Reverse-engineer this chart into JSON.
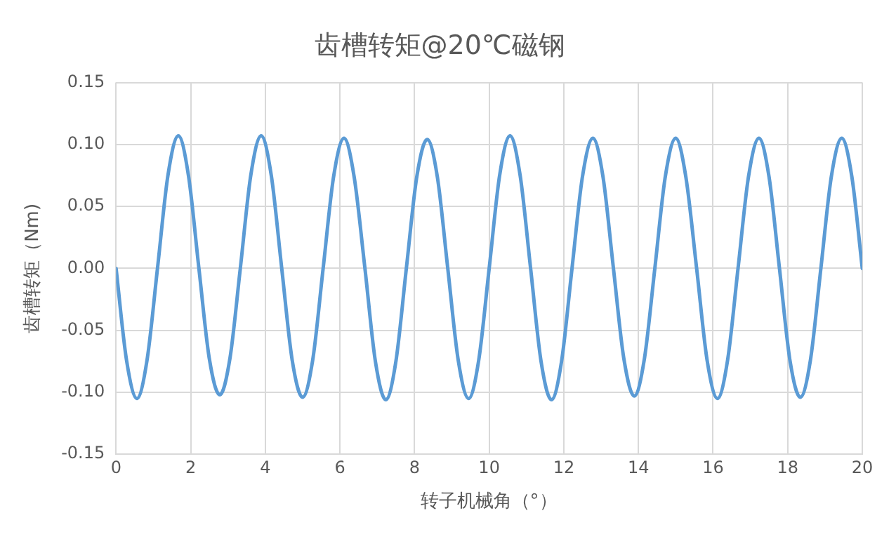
{
  "chart_data": {
    "type": "line",
    "title": "齿槽转矩@20℃磁钢",
    "xlabel": "转子机械角（°）",
    "ylabel": "齿槽转矩（Nm)",
    "x": [
      0,
      0.28,
      0.56,
      0.83,
      1.11,
      1.39,
      1.67,
      1.94,
      2.22,
      2.5,
      2.78,
      3.05,
      3.33,
      3.61,
      3.89,
      4.16,
      4.44,
      4.72,
      5,
      5.27,
      5.55,
      5.83,
      6.11,
      6.38,
      6.67,
      6.95,
      7.23,
      7.5,
      7.78,
      8.06,
      8.34,
      8.61,
      8.89,
      9.17,
      9.45,
      9.72,
      10,
      10.28,
      10.56,
      10.83,
      11.11,
      11.39,
      11.67,
      11.94,
      12.22,
      12.5,
      12.78,
      13.05,
      13.33,
      13.61,
      13.89,
      14.16,
      14.44,
      14.72,
      15,
      15.27,
      15.56,
      15.84,
      16.12,
      16.39,
      16.67,
      16.95,
      17.23,
      17.5,
      17.78,
      18.06,
      18.34,
      18.61,
      18.89,
      19.17,
      19.45,
      19.72,
      20
    ],
    "series": [
      {
        "color": "#5b9bd5",
        "values": [
          0,
          -0.074,
          -0.105,
          -0.074,
          0,
          0.075,
          0.107,
          0.075,
          0,
          -0.073,
          -0.102,
          -0.073,
          0,
          0.075,
          0.107,
          0.075,
          0,
          -0.074,
          -0.104,
          -0.074,
          0,
          0.074,
          0.105,
          0.074,
          0,
          -0.075,
          -0.106,
          -0.075,
          0,
          0.074,
          0.104,
          0.074,
          0,
          -0.074,
          -0.105,
          -0.074,
          0,
          0.075,
          0.107,
          0.075,
          0,
          -0.075,
          -0.106,
          -0.075,
          0,
          0.074,
          0.105,
          0.074,
          0,
          -0.073,
          -0.103,
          -0.073,
          0,
          0.074,
          0.105,
          0.074,
          0,
          -0.074,
          -0.105,
          -0.074,
          0,
          0.074,
          0.105,
          0.074,
          0,
          -0.074,
          -0.104,
          -0.074,
          0,
          0.074,
          0.105,
          0.074,
          0
        ]
      }
    ],
    "xlim": [
      0,
      20
    ],
    "xticks": [
      0,
      2,
      4,
      6,
      8,
      10,
      12,
      14,
      16,
      18,
      20
    ],
    "ylim": [
      -0.15,
      0.15
    ],
    "yticks": [
      {
        "value": -0.15,
        "label": "-0.15"
      },
      {
        "value": -0.1,
        "label": "-0.10"
      },
      {
        "value": -0.05,
        "label": "-0.05"
      },
      {
        "value": 0,
        "label": "0.00"
      },
      {
        "value": 0.05,
        "label": "0.05"
      },
      {
        "value": 0.1,
        "label": "0.10"
      },
      {
        "value": 0.15,
        "label": "0.15"
      }
    ],
    "grid": true,
    "legend": false,
    "marker": "none",
    "line_style": "solid"
  }
}
